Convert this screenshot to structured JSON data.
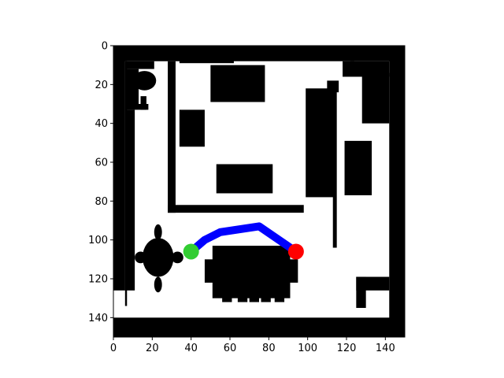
{
  "chart_data": {
    "type": "map",
    "title": "",
    "xlabel": "",
    "ylabel": "",
    "xlim": [
      0,
      150
    ],
    "ylim": [
      150,
      0
    ],
    "y_inverted": true,
    "x_ticks": [
      0,
      20,
      40,
      60,
      80,
      100,
      120,
      140
    ],
    "y_ticks": [
      0,
      20,
      40,
      60,
      80,
      100,
      120,
      140
    ],
    "grid": false,
    "legend": "none",
    "colors": {
      "free_space": "#ffffff",
      "obstacle": "#000000",
      "path": "#0000ff",
      "start": "#32cd32",
      "goal": "#ff0000"
    },
    "obstacles": [
      {
        "x": 0,
        "y": 0,
        "w": 150,
        "h": 8
      },
      {
        "x": 0,
        "y": 140,
        "w": 150,
        "h": 10
      },
      {
        "x": 0,
        "y": 0,
        "w": 6,
        "h": 126
      },
      {
        "x": 142,
        "y": 0,
        "w": 8,
        "h": 150
      },
      {
        "x": 6,
        "y": 8,
        "w": 1,
        "h": 126
      },
      {
        "x": 6,
        "y": 8,
        "w": 15,
        "h": 4
      },
      {
        "x": 6,
        "y": 30,
        "w": 12,
        "h": 3
      },
      {
        "x": 14,
        "y": 26,
        "w": 3,
        "h": 7
      },
      {
        "x": 6,
        "y": 12,
        "w": 7,
        "h": 18
      },
      {
        "x": 6,
        "y": 33,
        "w": 5,
        "h": 93
      },
      {
        "x": 28,
        "y": 8,
        "w": 4,
        "h": 78
      },
      {
        "x": 28,
        "y": 82,
        "w": 70,
        "h": 4
      },
      {
        "x": 122,
        "y": 8,
        "w": 2,
        "h": 7
      },
      {
        "x": 34,
        "y": 7,
        "w": 28,
        "h": 2
      },
      {
        "x": 50,
        "y": 10,
        "w": 28,
        "h": 19
      },
      {
        "x": 34,
        "y": 33,
        "w": 13,
        "h": 19
      },
      {
        "x": 53,
        "y": 61,
        "w": 29,
        "h": 15
      },
      {
        "x": 99,
        "y": 22,
        "w": 15,
        "h": 56
      },
      {
        "x": 110,
        "y": 18,
        "w": 6,
        "h": 6
      },
      {
        "x": 113,
        "y": 22,
        "w": 2,
        "h": 82
      },
      {
        "x": 118,
        "y": 8,
        "w": 24,
        "h": 8
      },
      {
        "x": 128,
        "y": 14,
        "w": 14,
        "h": 26
      },
      {
        "x": 119,
        "y": 49,
        "w": 14,
        "h": 28
      },
      {
        "x": 125,
        "y": 119,
        "w": 17,
        "h": 7
      },
      {
        "x": 125,
        "y": 119,
        "w": 5,
        "h": 16
      },
      {
        "x": 51,
        "y": 103,
        "w": 40,
        "h": 27
      },
      {
        "x": 47,
        "y": 110,
        "w": 48,
        "h": 12
      },
      {
        "x": 56,
        "y": 128,
        "w": 5,
        "h": 4
      },
      {
        "x": 64,
        "y": 128,
        "w": 5,
        "h": 4
      },
      {
        "x": 70,
        "y": 128,
        "w": 5,
        "h": 4
      },
      {
        "x": 76,
        "y": 128,
        "w": 5,
        "h": 4
      },
      {
        "x": 83,
        "y": 128,
        "w": 5,
        "h": 4
      }
    ],
    "obstacle_blobs": [
      {
        "cx": 16,
        "cy": 18,
        "rx": 6,
        "ry": 5
      },
      {
        "cx": 23,
        "cy": 109,
        "rx": 8,
        "ry": 10
      },
      {
        "cx": 23,
        "cy": 96,
        "rx": 2,
        "ry": 4
      },
      {
        "cx": 23,
        "cy": 123,
        "rx": 2,
        "ry": 4
      },
      {
        "cx": 14,
        "cy": 109,
        "rx": 3,
        "ry": 3
      },
      {
        "cx": 33,
        "cy": 109,
        "rx": 3,
        "ry": 3
      }
    ],
    "path": [
      {
        "x": 40,
        "y": 106
      },
      {
        "x": 47,
        "y": 100
      },
      {
        "x": 55,
        "y": 96
      },
      {
        "x": 75,
        "y": 93
      },
      {
        "x": 94,
        "y": 106
      }
    ],
    "start": {
      "x": 40,
      "y": 106
    },
    "goal": {
      "x": 94,
      "y": 106
    }
  }
}
